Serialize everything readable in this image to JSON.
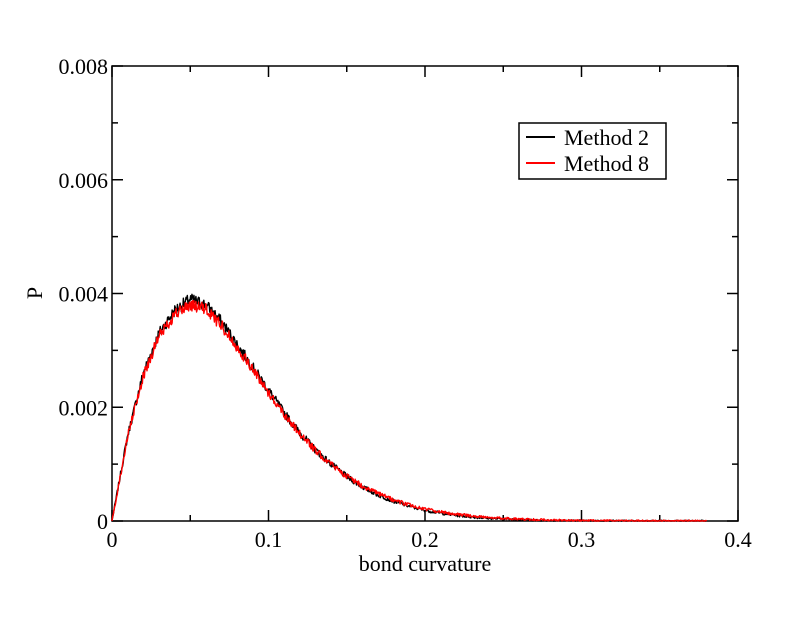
{
  "chart_data": {
    "type": "line",
    "title": "",
    "xlabel": "bond curvature",
    "ylabel": "P",
    "xlim": [
      0,
      0.4
    ],
    "ylim": [
      0,
      0.008
    ],
    "x_ticks": [
      0,
      0.1,
      0.2,
      0.3,
      0.4
    ],
    "x_tick_labels": [
      "0",
      "0.1",
      "0.2",
      "0.3",
      "0.4"
    ],
    "y_ticks": [
      0,
      0.002,
      0.004,
      0.006,
      0.008
    ],
    "y_tick_labels": [
      "0",
      "0.002",
      "0.004",
      "0.006",
      "0.008"
    ],
    "grid": false,
    "legend_position": "top-right",
    "x": [
      0,
      0.01,
      0.02,
      0.03,
      0.04,
      0.05,
      0.06,
      0.07,
      0.08,
      0.09,
      0.1,
      0.11,
      0.12,
      0.13,
      0.14,
      0.15,
      0.16,
      0.17,
      0.18,
      0.19,
      0.2,
      0.21,
      0.22,
      0.23,
      0.24,
      0.25,
      0.26,
      0.27,
      0.28,
      0.29,
      0.3,
      0.31,
      0.32,
      0.33,
      0.34,
      0.35,
      0.36,
      0.37,
      0.38
    ],
    "series": [
      {
        "name": "Method 2",
        "color": "#000000",
        "values": [
          0,
          0.0015,
          0.0026,
          0.0033,
          0.0037,
          0.0039,
          0.0038,
          0.0035,
          0.0031,
          0.0027,
          0.0023,
          0.0019,
          0.00155,
          0.00125,
          0.001,
          0.00078,
          0.0006,
          0.00046,
          0.00035,
          0.00026,
          0.00019,
          0.00014,
          0.0001,
          7e-05,
          5e-05,
          3.5e-05,
          2.5e-05,
          1.6e-05,
          1e-05,
          7e-06,
          4e-06,
          3e-06,
          2e-06,
          1e-06,
          1e-06,
          0,
          0,
          0,
          0
        ]
      },
      {
        "name": "Method 8",
        "color": "#ff0000",
        "values": [
          0,
          0.00148,
          0.00255,
          0.00325,
          0.00363,
          0.0038,
          0.00372,
          0.00344,
          0.00306,
          0.00266,
          0.00226,
          0.00188,
          0.00154,
          0.00124,
          0.001,
          0.00079,
          0.00062,
          0.00048,
          0.00037,
          0.00028,
          0.00021,
          0.00016,
          0.00012,
          9e-05,
          6.5e-05,
          4.8e-05,
          3.5e-05,
          2.5e-05,
          1.8e-05,
          1.2e-05,
          8e-06,
          6e-06,
          4e-06,
          3e-06,
          2e-06,
          1e-06,
          1e-06,
          0,
          0
        ]
      }
    ]
  }
}
